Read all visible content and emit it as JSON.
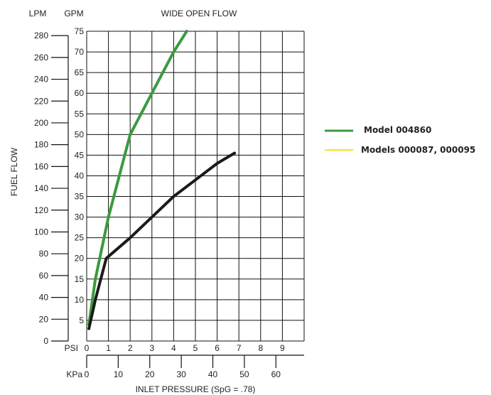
{
  "chart_data": {
    "type": "line",
    "title": "WIDE OPEN FLOW",
    "ylabel": "FUEL FLOW",
    "xlabel": "INLET PRESSURE (SpG = .78)",
    "left_axis_unit": "LPM",
    "right_axis_unit": "GPM",
    "psi_unit": "PSI",
    "kpa_unit": "KPa",
    "psi_ticks": [
      "0",
      "1",
      "2",
      "3",
      "4",
      "5",
      "6",
      "7",
      "8",
      "9"
    ],
    "kpa_ticks": [
      "0",
      "10",
      "20",
      "30",
      "40",
      "50",
      "60"
    ],
    "gpm_ticks": [
      "5",
      "10",
      "15",
      "20",
      "25",
      "30",
      "35",
      "40",
      "45",
      "50",
      "55",
      "60",
      "65",
      "70",
      "75"
    ],
    "lpm_ticks": [
      "0",
      "20",
      "40",
      "60",
      "80",
      "100",
      "120",
      "140",
      "160",
      "180",
      "200",
      "220",
      "240",
      "260",
      "280"
    ],
    "xlim": [
      0,
      10
    ],
    "ylim_gpm": [
      0,
      75
    ],
    "ylim_lpm": [
      0,
      284
    ],
    "grid": true,
    "legend_position": "right",
    "series": [
      {
        "name": "Model 004860",
        "color": "#3a9a3e",
        "points": [
          [
            0.1,
            4
          ],
          [
            0.4,
            15
          ],
          [
            1.0,
            30
          ],
          [
            1.5,
            40
          ],
          [
            2.0,
            50
          ],
          [
            3.0,
            60
          ],
          [
            4.0,
            70
          ],
          [
            4.6,
            75
          ]
        ]
      },
      {
        "name": "Models 000087, 000095",
        "color": "#ffe600",
        "points": []
      },
      {
        "color": "#1a1a1a",
        "points": [
          [
            0.1,
            3
          ],
          [
            0.4,
            10
          ],
          [
            0.9,
            20
          ],
          [
            2.0,
            25
          ],
          [
            3.0,
            30
          ],
          [
            4.0,
            35
          ],
          [
            5.0,
            39
          ],
          [
            6.0,
            43
          ],
          [
            6.8,
            45.5
          ]
        ]
      }
    ]
  }
}
